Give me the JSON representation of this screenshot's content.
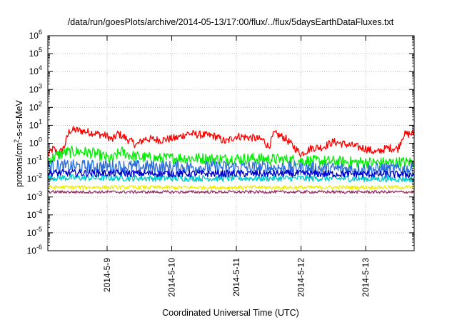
{
  "chart_data": {
    "type": "line",
    "title": "/data/run/goesPlots/archive/2014-05-13/17:00/flux/../flux/5daysEarthDataFluxes.txt",
    "xlabel": "Coordinated Universal Time (UTC)",
    "ylabel_main": "protons/cm",
    "ylabel_sup": "2",
    "ylabel_rest": "-s-sr-MeV",
    "y_scale": "log",
    "ylim": [
      1e-06,
      1000000.0
    ],
    "y_ticks": [
      {
        "base": "10",
        "exp": "-6"
      },
      {
        "base": "10",
        "exp": "-5"
      },
      {
        "base": "10",
        "exp": "-4"
      },
      {
        "base": "10",
        "exp": "-3"
      },
      {
        "base": "10",
        "exp": "-2"
      },
      {
        "base": "10",
        "exp": "-1"
      },
      {
        "base": "10",
        "exp": "0"
      },
      {
        "base": "10",
        "exp": "1"
      },
      {
        "base": "10",
        "exp": "2"
      },
      {
        "base": "10",
        "exp": "3"
      },
      {
        "base": "10",
        "exp": "4"
      },
      {
        "base": "10",
        "exp": "5"
      },
      {
        "base": "10",
        "exp": "6"
      }
    ],
    "xlim": [
      "2014-05-08T02:00",
      "2014-05-13T18:00"
    ],
    "x_ticks": [
      "2014-5-9",
      "2014-5-10",
      "2014-5-11",
      "2014-5-12",
      "2014-5-13"
    ],
    "x_tick_dates": [
      "2014-05-09T00:00",
      "2014-05-10T00:00",
      "2014-05-11T00:00",
      "2014-05-12T00:00",
      "2014-05-13T00:00"
    ],
    "grid": true,
    "legend": "none",
    "series": [
      {
        "color": "#ff0000",
        "noise": 0.22,
        "points": [
          [
            "2014-05-08T02:00",
            0.22
          ],
          [
            "2014-05-08T04:00",
            0.5
          ],
          [
            "2014-05-08T06:00",
            0.25
          ],
          [
            "2014-05-08T08:00",
            0.6
          ],
          [
            "2014-05-08T10:00",
            5.0
          ],
          [
            "2014-05-08T12:00",
            5.5
          ],
          [
            "2014-05-08T16:00",
            4.5
          ],
          [
            "2014-05-08T20:00",
            3.5
          ],
          [
            "2014-05-09T00:00",
            2.5
          ],
          [
            "2014-05-09T02:00",
            1.5
          ],
          [
            "2014-05-09T04:00",
            3.5
          ],
          [
            "2014-05-09T08:00",
            1.5
          ],
          [
            "2014-05-09T11:00",
            0.8
          ],
          [
            "2014-05-09T14:00",
            1.8
          ],
          [
            "2014-05-09T20:00",
            1.5
          ],
          [
            "2014-05-10T02:00",
            2.0
          ],
          [
            "2014-05-10T06:00",
            3.5
          ],
          [
            "2014-05-10T10:00",
            3.0
          ],
          [
            "2014-05-10T16:00",
            2.5
          ],
          [
            "2014-05-10T20:00",
            1.2
          ],
          [
            "2014-05-11T00:00",
            2.5
          ],
          [
            "2014-05-11T06:00",
            2.0
          ],
          [
            "2014-05-11T10:00",
            1.5
          ],
          [
            "2014-05-11T12:00",
            0.6
          ],
          [
            "2014-05-11T14:00",
            3.5
          ],
          [
            "2014-05-11T18:00",
            2.0
          ],
          [
            "2014-05-11T22:00",
            0.5
          ],
          [
            "2014-05-12T00:00",
            0.25
          ],
          [
            "2014-05-12T04:00",
            0.55
          ],
          [
            "2014-05-12T08:00",
            0.6
          ],
          [
            "2014-05-12T12:00",
            1.2
          ],
          [
            "2014-05-12T16:00",
            0.9
          ],
          [
            "2014-05-13T00:00",
            0.5
          ],
          [
            "2014-05-13T04:00",
            0.3
          ],
          [
            "2014-05-13T08:00",
            0.55
          ],
          [
            "2014-05-13T12:00",
            0.5
          ],
          [
            "2014-05-13T14:00",
            3.0
          ],
          [
            "2014-05-13T18:00",
            3.5
          ]
        ]
      },
      {
        "color": "#00ee00",
        "noise": 0.32,
        "points": [
          [
            "2014-05-08T02:00",
            0.12
          ],
          [
            "2014-05-08T08:00",
            0.3
          ],
          [
            "2014-05-08T14:00",
            0.35
          ],
          [
            "2014-05-08T20:00",
            0.25
          ],
          [
            "2014-05-09T02:00",
            0.12
          ],
          [
            "2014-05-09T05:00",
            0.35
          ],
          [
            "2014-05-09T10:00",
            0.18
          ],
          [
            "2014-05-09T18:00",
            0.14
          ],
          [
            "2014-05-10T06:00",
            0.15
          ],
          [
            "2014-05-10T18:00",
            0.13
          ],
          [
            "2014-05-11T06:00",
            0.14
          ],
          [
            "2014-05-11T18:00",
            0.12
          ],
          [
            "2014-05-12T06:00",
            0.1
          ],
          [
            "2014-05-12T18:00",
            0.09
          ],
          [
            "2014-05-13T06:00",
            0.08
          ],
          [
            "2014-05-13T18:00",
            0.09
          ]
        ]
      },
      {
        "color": "#00cccc",
        "noise": 0.18,
        "points": [
          [
            "2014-05-08T02:00",
            0.012
          ],
          [
            "2014-05-10T00:00",
            0.011
          ],
          [
            "2014-05-12T00:00",
            0.011
          ],
          [
            "2014-05-13T18:00",
            0.01
          ]
        ]
      },
      {
        "color": "#2a6fdb",
        "noise": 0.38,
        "points": [
          [
            "2014-05-08T02:00",
            0.05
          ],
          [
            "2014-05-09T00:00",
            0.05
          ],
          [
            "2014-05-10T00:00",
            0.045
          ],
          [
            "2014-05-11T00:00",
            0.045
          ],
          [
            "2014-05-12T00:00",
            0.04
          ],
          [
            "2014-05-13T00:00",
            0.035
          ],
          [
            "2014-05-13T18:00",
            0.035
          ]
        ]
      },
      {
        "color": "#0000cc",
        "noise": 0.2,
        "points": [
          [
            "2014-05-08T02:00",
            0.022
          ],
          [
            "2014-05-10T00:00",
            0.02
          ],
          [
            "2014-05-12T00:00",
            0.02
          ],
          [
            "2014-05-13T18:00",
            0.018
          ]
        ]
      },
      {
        "color": "#eeee00",
        "noise": 0.1,
        "points": [
          [
            "2014-05-08T02:00",
            0.0035
          ],
          [
            "2014-05-10T00:00",
            0.0034
          ],
          [
            "2014-05-12T00:00",
            0.0034
          ],
          [
            "2014-05-13T18:00",
            0.0035
          ]
        ]
      },
      {
        "color": "#993366",
        "noise": 0.08,
        "points": [
          [
            "2014-05-08T02:00",
            0.0019
          ],
          [
            "2014-05-10T00:00",
            0.0019
          ],
          [
            "2014-05-12T00:00",
            0.0019
          ],
          [
            "2014-05-13T18:00",
            0.0019
          ]
        ]
      }
    ]
  }
}
